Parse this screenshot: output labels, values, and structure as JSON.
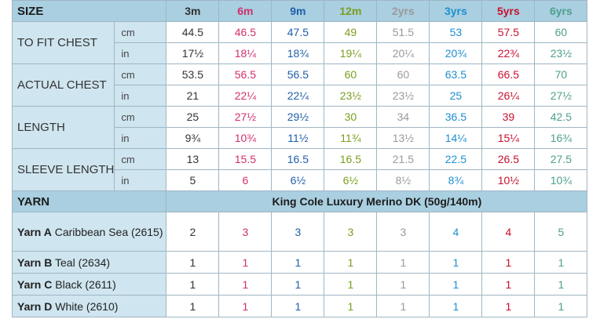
{
  "size_label": "SIZE",
  "sizes": [
    "3m",
    "6m",
    "9m",
    "12m",
    "2yrs",
    "3yrs",
    "5yrs",
    "6yrs"
  ],
  "size_colors": [
    "#333333",
    "#d0306c",
    "#1f5fa8",
    "#7a9e20",
    "#9a9a9a",
    "#1d8fcf",
    "#c8102e",
    "#4d9f8b"
  ],
  "measurements": [
    {
      "label": "TO FIT CHEST",
      "rows": [
        {
          "unit": "cm",
          "values": [
            "44.5",
            "46.5",
            "47.5",
            "49",
            "51.5",
            "53",
            "57.5",
            "60"
          ]
        },
        {
          "unit": "in",
          "values": [
            "17½",
            "18¼",
            "18¾",
            "19¼",
            "20¼",
            "20¾",
            "22¾",
            "23½"
          ]
        }
      ]
    },
    {
      "label": "ACTUAL CHEST",
      "rows": [
        {
          "unit": "cm",
          "values": [
            "53.5",
            "56.5",
            "56.5",
            "60",
            "60",
            "63.5",
            "66.5",
            "70"
          ]
        },
        {
          "unit": "in",
          "values": [
            "21",
            "22¼",
            "22¼",
            "23½",
            "23½",
            "25",
            "26¼",
            "27½"
          ]
        }
      ]
    },
    {
      "label": "LENGTH",
      "rows": [
        {
          "unit": "cm",
          "values": [
            "25",
            "27½",
            "29½",
            "30",
            "34",
            "36.5",
            "39",
            "42.5"
          ]
        },
        {
          "unit": "in",
          "values": [
            "9¾",
            "10¾",
            "11½",
            "11¾",
            "13½",
            "14¼",
            "15¼",
            "16¾"
          ]
        }
      ]
    },
    {
      "label": "SLEEVE LENGTH",
      "rows": [
        {
          "unit": "cm",
          "values": [
            "13",
            "15.5",
            "16.5",
            "16.5",
            "21.5",
            "22.5",
            "26.5",
            "27.5"
          ]
        },
        {
          "unit": "in",
          "values": [
            "5",
            "6",
            "6½",
            "6½",
            "8½",
            "8¾",
            "10½",
            "10¾"
          ]
        }
      ]
    }
  ],
  "yarn_label": "YARN",
  "yarn_title": "King Cole Luxury Merino DK (50g/140m)",
  "yarns": [
    {
      "name": "Yarn A",
      "color": "Caribbean Sea (2615)",
      "values": [
        "2",
        "3",
        "3",
        "3",
        "3",
        "4",
        "4",
        "5"
      ]
    },
    {
      "name": "Yarn B",
      "color": "Teal (2634)",
      "values": [
        "1",
        "1",
        "1",
        "1",
        "1",
        "1",
        "1",
        "1"
      ]
    },
    {
      "name": "Yarn C",
      "color": "Black (2611)",
      "values": [
        "1",
        "1",
        "1",
        "1",
        "1",
        "1",
        "1",
        "1"
      ]
    },
    {
      "name": "Yarn D",
      "color": "White (2610)",
      "values": [
        "1",
        "1",
        "1",
        "1",
        "1",
        "1",
        "1",
        "1"
      ]
    }
  ]
}
